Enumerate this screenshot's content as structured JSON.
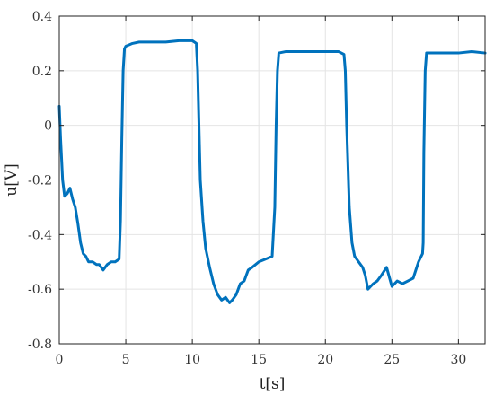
{
  "chart_data": {
    "type": "line",
    "xlabel": "t[s]",
    "ylabel": "u[V]",
    "xlim": [
      0,
      32
    ],
    "ylim": [
      -0.8,
      0.4
    ],
    "xticks": [
      0,
      5,
      10,
      15,
      20,
      25,
      30
    ],
    "yticks": [
      0.4,
      0.2,
      0,
      -0.2,
      -0.4,
      -0.6,
      -0.8
    ],
    "xtick_labels": [
      "0",
      "5",
      "10",
      "15",
      "20",
      "25",
      "30"
    ],
    "ytick_labels": [
      "0.4",
      "0.2",
      "0",
      "-0.2",
      "-0.4",
      "-0.6",
      "-0.8"
    ],
    "grid": true,
    "series": [
      {
        "color": "#0072bd",
        "x": [
          0.0,
          0.1,
          0.25,
          0.4,
          0.6,
          0.8,
          1.0,
          1.2,
          1.4,
          1.6,
          1.8,
          2.0,
          2.2,
          2.5,
          2.8,
          3.0,
          3.3,
          3.6,
          3.9,
          4.2,
          4.5,
          4.6,
          4.7,
          4.8,
          4.9,
          5.0,
          5.5,
          6.0,
          7.0,
          8.0,
          9.0,
          10.0,
          10.3,
          10.4,
          10.5,
          10.6,
          10.8,
          11.0,
          11.3,
          11.6,
          11.9,
          12.2,
          12.5,
          12.8,
          13.0,
          13.3,
          13.6,
          13.9,
          14.2,
          14.5,
          15.0,
          15.5,
          16.0,
          16.2,
          16.3,
          16.4,
          16.5,
          17.0,
          18.0,
          19.0,
          20.0,
          21.0,
          21.4,
          21.5,
          21.6,
          21.8,
          22.0,
          22.2,
          22.5,
          22.8,
          23.0,
          23.2,
          23.4,
          23.6,
          23.9,
          24.2,
          24.6,
          25.0,
          25.4,
          25.8,
          26.2,
          26.6,
          27.0,
          27.3,
          27.35,
          27.4,
          27.5,
          27.6,
          28.0,
          29.0,
          30.0,
          31.0,
          32.0
        ],
        "y": [
          0.07,
          -0.05,
          -0.2,
          -0.26,
          -0.25,
          -0.23,
          -0.27,
          -0.3,
          -0.36,
          -0.43,
          -0.47,
          -0.48,
          -0.5,
          -0.5,
          -0.51,
          -0.51,
          -0.53,
          -0.51,
          -0.5,
          -0.5,
          -0.49,
          -0.35,
          -0.05,
          0.2,
          0.28,
          0.29,
          0.3,
          0.305,
          0.305,
          0.305,
          0.31,
          0.31,
          0.3,
          0.2,
          0.0,
          -0.2,
          -0.35,
          -0.45,
          -0.52,
          -0.58,
          -0.62,
          -0.64,
          -0.63,
          -0.65,
          -0.64,
          -0.62,
          -0.58,
          -0.57,
          -0.53,
          -0.52,
          -0.5,
          -0.49,
          -0.48,
          -0.3,
          0.0,
          0.2,
          0.265,
          0.27,
          0.27,
          0.27,
          0.27,
          0.27,
          0.26,
          0.2,
          0.0,
          -0.3,
          -0.43,
          -0.48,
          -0.5,
          -0.52,
          -0.55,
          -0.6,
          -0.59,
          -0.58,
          -0.57,
          -0.55,
          -0.52,
          -0.59,
          -0.57,
          -0.58,
          -0.57,
          -0.56,
          -0.5,
          -0.47,
          -0.43,
          -0.1,
          0.2,
          0.265,
          0.265,
          0.265,
          0.265,
          0.27,
          0.265
        ]
      }
    ]
  }
}
